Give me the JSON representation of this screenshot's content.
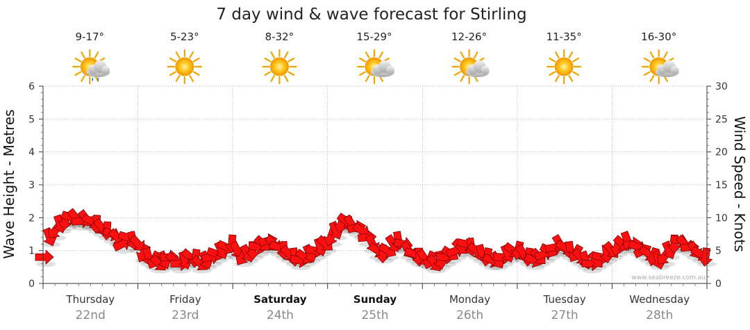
{
  "chart_data": {
    "type": "line",
    "title": "7 day wind & wave forecast for Stirling",
    "ylabel_left": "Wave Height - Metres",
    "ylabel_right": "Wind Speed - Knots",
    "ylim_left": [
      0,
      6
    ],
    "ylim_right": [
      0,
      30
    ],
    "yticks_left": [
      "0",
      "1",
      "2",
      "3",
      "4",
      "5",
      "6"
    ],
    "yticks_right": [
      "0",
      "5",
      "10",
      "15",
      "20",
      "25",
      "30"
    ],
    "grid": true,
    "days": [
      {
        "name": "Thursday",
        "date": "22nd",
        "temp_range": "9-17°",
        "weather_icon": "sun-cloud-rain-icon",
        "bold": false
      },
      {
        "name": "Friday",
        "date": "23rd",
        "temp_range": "5-23°",
        "weather_icon": "sun-icon",
        "bold": false
      },
      {
        "name": "Saturday",
        "date": "24th",
        "temp_range": "8-32°",
        "weather_icon": "sun-icon",
        "bold": true
      },
      {
        "name": "Sunday",
        "date": "25th",
        "temp_range": "15-29°",
        "weather_icon": "sun-cloud-icon",
        "bold": true
      },
      {
        "name": "Monday",
        "date": "26th",
        "temp_range": "12-26°",
        "weather_icon": "sun-cloud-icon",
        "bold": false
      },
      {
        "name": "Tuesday",
        "date": "27th",
        "temp_range": "11-35°",
        "weather_icon": "sun-icon",
        "bold": false
      },
      {
        "name": "Wednesday",
        "date": "28th",
        "temp_range": "16-30°",
        "weather_icon": "sun-cloud-icon",
        "bold": false
      }
    ],
    "series": [
      {
        "values_knots": [
          4,
          7,
          8,
          9,
          9.5,
          10,
          10,
          9.5,
          9.8,
          9.5,
          9,
          8.5,
          8,
          7.5,
          7,
          6,
          7,
          6.5,
          6,
          4.5,
          4,
          3.5,
          3,
          3.5,
          4,
          3.5,
          3,
          3.5,
          4,
          3.8,
          3,
          3.5,
          4,
          4.5,
          5,
          5.5,
          6,
          5,
          4,
          4.5,
          5,
          5.5,
          6,
          6.5,
          6,
          5.5,
          5,
          4.5,
          4,
          3.5,
          4,
          4.5,
          5,
          5.5,
          6,
          7,
          8,
          9,
          9.5,
          9,
          8.5,
          8,
          7,
          6,
          5,
          4.5,
          5,
          6,
          6.5,
          6,
          5,
          4.5,
          4,
          3.8,
          3.5,
          3,
          3.5,
          4,
          4.5,
          5,
          5.5,
          6,
          5.5,
          5,
          4.5,
          4,
          3.5,
          3.5,
          4,
          4.5,
          5,
          5,
          4.5,
          4,
          3.5,
          4,
          4.5,
          5,
          5.5,
          6,
          5.5,
          5,
          4.5,
          4,
          3.5,
          3,
          3.5,
          4,
          4.5,
          5,
          5.5,
          6,
          6.5,
          6,
          5.5,
          5,
          4.5,
          4,
          3.5,
          4,
          5,
          6,
          6.5,
          6,
          5.5,
          5,
          4.5,
          4
        ]
      }
    ]
  },
  "credit": "www.seabreeze.com.au"
}
